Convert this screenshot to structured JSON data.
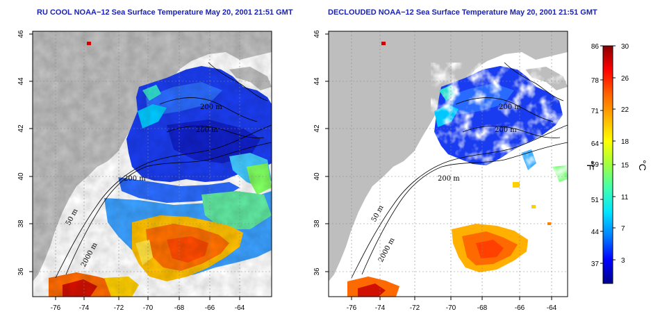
{
  "panels": [
    {
      "title": "RU COOL NOAA−12 Sea Surface Temperature May 20, 2001 21:51 GMT",
      "x_ticks": [
        "-76",
        "-74",
        "-72",
        "-70",
        "-68",
        "-66",
        "-64"
      ],
      "y_ticks": [
        "46",
        "44",
        "42",
        "40",
        "38",
        "36"
      ],
      "contour_labels": [
        "200 m",
        "200 m",
        "200 m",
        "50 m",
        "2000 m"
      ]
    },
    {
      "title": "DECLOUDED NOAA−12 Sea Surface Temperature May 20, 2001 21:51 GMT",
      "x_ticks": [
        "-76",
        "-74",
        "-72",
        "-70",
        "-68",
        "-66",
        "-64"
      ],
      "y_ticks": [
        "46",
        "44",
        "42",
        "40",
        "38",
        "36"
      ],
      "contour_labels": [
        "200 m",
        "200 m",
        "200 m",
        "50 m",
        "2000 m"
      ]
    }
  ],
  "colorbar": {
    "unit_f": "°F",
    "unit_c": "°C",
    "f_ticks": [
      "86",
      "78",
      "71",
      "64",
      "59",
      "51",
      "44",
      "37"
    ],
    "c_ticks": [
      "30",
      "26",
      "22",
      "18",
      "15",
      "11",
      "7",
      "3"
    ],
    "colors": [
      "#00008b",
      "#0000ff",
      "#0080ff",
      "#00e5ff",
      "#40ffb0",
      "#a0ff40",
      "#ffff00",
      "#ffb000",
      "#ff6000",
      "#ff0000",
      "#8b0000"
    ]
  }
}
